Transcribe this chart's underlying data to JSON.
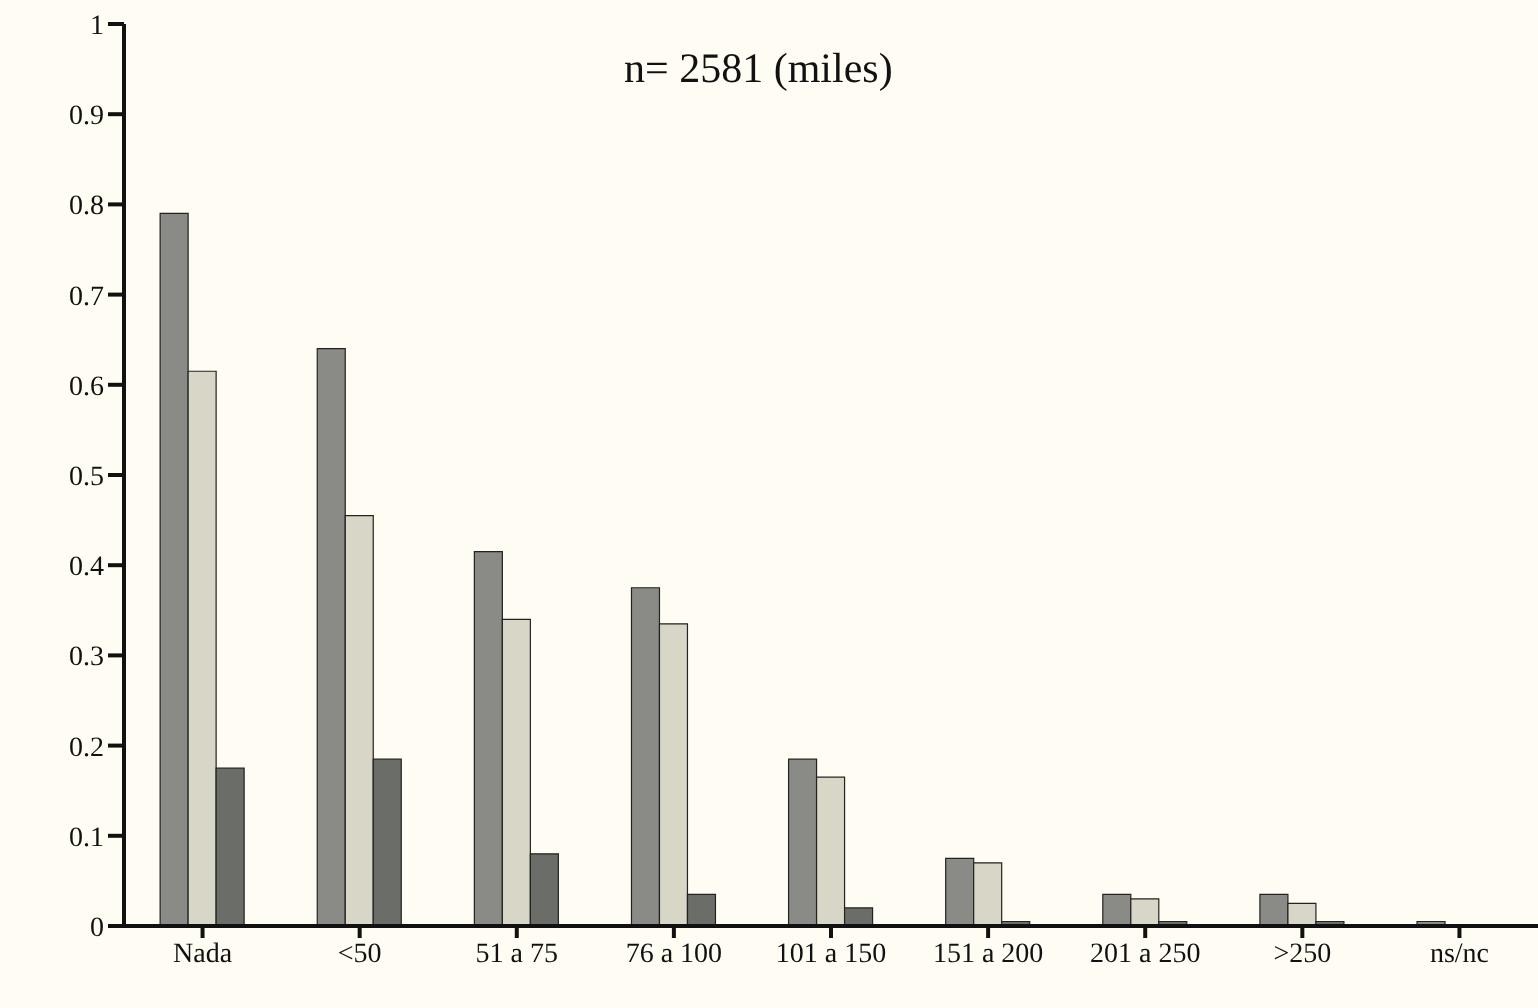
{
  "chart_data": {
    "type": "bar",
    "categories": [
      "Nada",
      "<50",
      "51 a 75",
      "76 a 100",
      "101 a 150",
      "151 a 200",
      "201 a 250",
      ">250",
      "ns/nc"
    ],
    "series": [
      {
        "color": "#8a8a86",
        "values": [
          0.79,
          0.64,
          0.415,
          0.375,
          0.185,
          0.075,
          0.035,
          0.035,
          0.005
        ]
      },
      {
        "color": "#d8d6c6",
        "values": [
          0.615,
          0.455,
          0.34,
          0.335,
          0.165,
          0.07,
          0.03,
          0.025,
          0
        ]
      },
      {
        "color": "#6b6d69",
        "values": [
          0.175,
          0.185,
          0.08,
          0.035,
          0.02,
          0.005,
          0.005,
          0.005,
          0
        ]
      }
    ],
    "annotations": [
      "n= 2581 (miles)"
    ],
    "ylim": [
      0,
      1
    ],
    "yticks": [
      0,
      0.1,
      0.2,
      0.3,
      0.4,
      0.5,
      0.6,
      0.7,
      0.8,
      0.9,
      1
    ],
    "grid": false,
    "legend": false
  }
}
